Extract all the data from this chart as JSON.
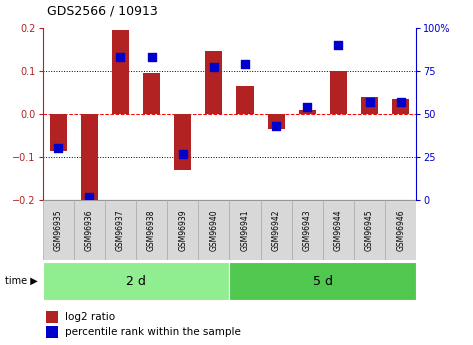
{
  "title": "GDS2566 / 10913",
  "samples": [
    "GSM96935",
    "GSM96936",
    "GSM96937",
    "GSM96938",
    "GSM96939",
    "GSM96940",
    "GSM96941",
    "GSM96942",
    "GSM96943",
    "GSM96944",
    "GSM96945",
    "GSM96946"
  ],
  "log2_ratio": [
    -0.085,
    -0.2,
    0.195,
    0.095,
    -0.13,
    0.145,
    0.065,
    -0.035,
    0.01,
    0.1,
    0.04,
    0.035
  ],
  "percentile": [
    30,
    2,
    83,
    83,
    27,
    77,
    79,
    43,
    54,
    90,
    57,
    57
  ],
  "groups": [
    {
      "label": "2 d",
      "start": 0,
      "end": 6,
      "color": "#90EE90"
    },
    {
      "label": "5 d",
      "start": 6,
      "end": 12,
      "color": "#50C850"
    }
  ],
  "bar_color": "#B22222",
  "dot_color": "#0000CC",
  "ylim_left": [
    -0.2,
    0.2
  ],
  "ylim_right": [
    0,
    100
  ],
  "yticks_left": [
    -0.2,
    -0.1,
    0.0,
    0.1,
    0.2
  ],
  "yticks_right": [
    0,
    25,
    50,
    75,
    100
  ],
  "legend_log2": "log2 ratio",
  "legend_pct": "percentile rank within the sample",
  "bar_width": 0.55,
  "dot_size": 30
}
